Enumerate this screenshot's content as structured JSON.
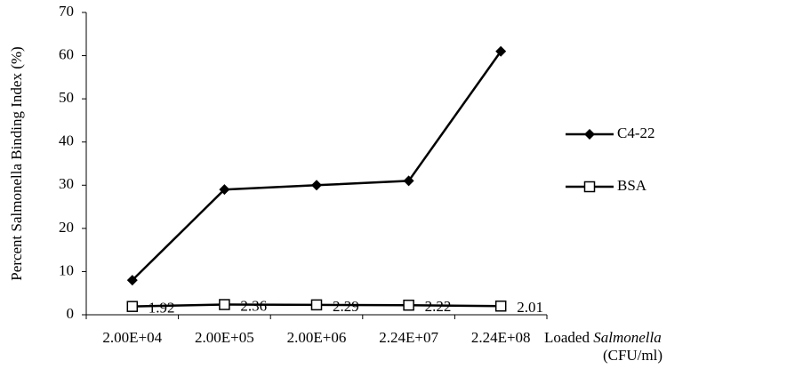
{
  "chart_data": {
    "type": "line",
    "y_label": "Percent Salmonella Binding Index  (%)",
    "x_label": [
      "Loaded",
      "Salmonella",
      "(CFU/ml)"
    ],
    "categories": [
      "2.00E+04",
      "2.00E+05",
      "2.00E+06",
      "2.24E+07",
      "2.24E+08"
    ],
    "series": [
      {
        "name": "C4-22",
        "color": "#000000",
        "marker": "diamond",
        "values": [
          8,
          29,
          30,
          31,
          61
        ]
      },
      {
        "name": "BSA",
        "color": "#000000",
        "marker": "square",
        "show_values": true,
        "values": [
          1.92,
          2.36,
          2.29,
          2.22,
          2.01
        ]
      }
    ],
    "ylim": [
      0,
      70
    ],
    "yticks": [
      0,
      10,
      20,
      30,
      40,
      50,
      60,
      70
    ],
    "grid": false,
    "legend": "right"
  }
}
